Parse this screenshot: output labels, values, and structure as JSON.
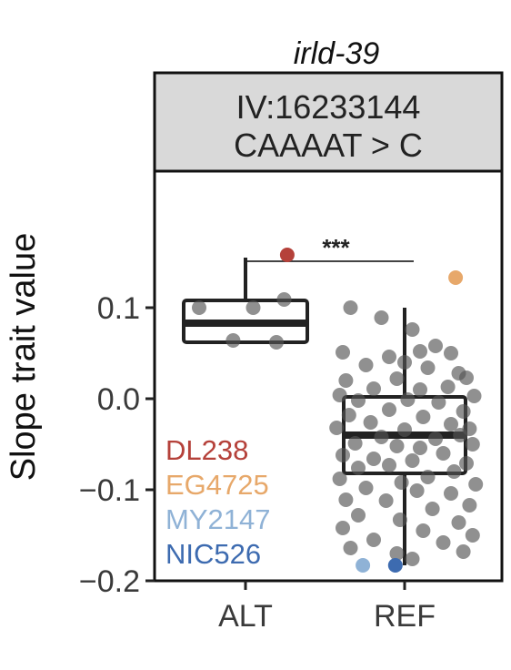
{
  "chart_data": {
    "type": "box",
    "title": "irld-39",
    "strip_lines": [
      "IV:16233144",
      "CAAAAT > C"
    ],
    "ylabel": "Slope trait value",
    "xlabel": "",
    "categories": [
      "ALT",
      "REF"
    ],
    "ylim": [
      -0.2,
      0.2
    ],
    "yticks": [
      {
        "value": 0.1,
        "label": "0.1"
      },
      {
        "value": 0.0,
        "label": "0.0"
      },
      {
        "value": -0.1,
        "label": "−0.1"
      },
      {
        "value": -0.2,
        "label": "−0.2"
      }
    ],
    "grid": false,
    "significance": {
      "from": "ALT",
      "to": "REF",
      "label": "***",
      "y": 0.195
    },
    "boxes": [
      {
        "category": "ALT",
        "whisker_low": 0.062,
        "q1": 0.062,
        "median": 0.083,
        "q3": 0.108,
        "whisker_high": 0.155
      },
      {
        "category": "REF",
        "whisker_low": -0.183,
        "q1": -0.082,
        "median": -0.04,
        "q3": 0.002,
        "whisker_high": 0.1
      }
    ],
    "points": {
      "ALT": [
        [
          -0.3,
          0.1
        ],
        [
          0.05,
          0.1
        ],
        [
          0.25,
          0.109
        ],
        [
          -0.08,
          0.064
        ],
        [
          0.2,
          0.062
        ]
      ],
      "REF": [
        [
          -0.35,
          0.1
        ],
        [
          -0.15,
          0.089
        ],
        [
          0.05,
          0.076
        ],
        [
          0.2,
          0.058
        ],
        [
          -0.4,
          0.051
        ],
        [
          -0.1,
          0.046
        ],
        [
          0.1,
          0.052
        ],
        [
          0.3,
          0.05
        ],
        [
          -0.25,
          0.037
        ],
        [
          0.0,
          0.04
        ],
        [
          0.15,
          0.034
        ],
        [
          0.35,
          0.028
        ],
        [
          -0.38,
          0.02
        ],
        [
          -0.05,
          0.022
        ],
        [
          0.4,
          0.023
        ],
        [
          -0.2,
          0.011
        ],
        [
          0.1,
          0.01
        ],
        [
          0.28,
          0.013
        ],
        [
          -0.42,
          0.004
        ],
        [
          -0.3,
          -0.002
        ],
        [
          0.02,
          -0.001
        ],
        [
          0.22,
          -0.004
        ],
        [
          0.45,
          0.003
        ],
        [
          -0.1,
          -0.012
        ],
        [
          0.38,
          -0.014
        ],
        [
          -0.36,
          -0.018
        ],
        [
          0.12,
          -0.02
        ],
        [
          -0.22,
          -0.026
        ],
        [
          0.3,
          -0.028
        ],
        [
          -0.44,
          -0.032
        ],
        [
          0.0,
          -0.034
        ],
        [
          0.42,
          -0.033
        ],
        [
          -0.15,
          -0.042
        ],
        [
          0.2,
          -0.044
        ],
        [
          0.36,
          -0.04
        ],
        [
          -0.32,
          -0.049
        ],
        [
          -0.05,
          -0.052
        ],
        [
          0.1,
          -0.054
        ],
        [
          0.44,
          -0.05
        ],
        [
          -0.4,
          -0.062
        ],
        [
          0.25,
          -0.06
        ],
        [
          -0.2,
          -0.066
        ],
        [
          0.05,
          -0.068
        ],
        [
          0.4,
          -0.071
        ],
        [
          -0.3,
          -0.076
        ],
        [
          -0.1,
          -0.073
        ],
        [
          0.32,
          -0.08
        ],
        [
          -0.42,
          -0.088
        ],
        [
          0.15,
          -0.086
        ],
        [
          -0.02,
          -0.092
        ],
        [
          0.46,
          -0.094
        ],
        [
          -0.25,
          -0.098
        ],
        [
          0.08,
          -0.101
        ],
        [
          0.3,
          -0.104
        ],
        [
          -0.38,
          -0.111
        ],
        [
          -0.12,
          -0.112
        ],
        [
          0.42,
          -0.117
        ],
        [
          0.18,
          -0.121
        ],
        [
          -0.3,
          -0.128
        ],
        [
          -0.03,
          -0.133
        ],
        [
          0.35,
          -0.136
        ],
        [
          -0.4,
          -0.142
        ],
        [
          0.12,
          -0.145
        ],
        [
          0.44,
          -0.15
        ],
        [
          -0.2,
          -0.155
        ],
        [
          0.25,
          -0.158
        ],
        [
          -0.35,
          -0.164
        ],
        [
          -0.05,
          -0.17
        ],
        [
          0.38,
          -0.168
        ],
        [
          0.05,
          -0.176
        ]
      ]
    },
    "highlighted": [
      {
        "strain": "DL238",
        "color": "#b5413a",
        "category": "ALT",
        "x_offset": 0.45,
        "value": 0.158
      },
      {
        "strain": "EG4725",
        "color": "#e7a86a",
        "category": "REF",
        "x_offset": 0.55,
        "value": 0.133
      },
      {
        "strain": "MY2147",
        "color": "#8fb2d6",
        "category": "REF",
        "x_offset": -0.45,
        "value": -0.183
      },
      {
        "strain": "NIC526",
        "color": "#3d6bb0",
        "category": "REF",
        "x_offset": -0.1,
        "value": -0.183
      }
    ],
    "legend": {
      "placement": "bottom-left inside panel",
      "entries": [
        {
          "label": "DL238",
          "color": "#b5413a"
        },
        {
          "label": "EG4725",
          "color": "#e7a86a"
        },
        {
          "label": "MY2147",
          "color": "#8fb2d6"
        },
        {
          "label": "NIC526",
          "color": "#3d6bb0"
        }
      ]
    },
    "colors": {
      "point": "#555555",
      "box_fill": "#ffffff",
      "strip_fill": "#d9d9d9",
      "axis": "#222222"
    }
  }
}
